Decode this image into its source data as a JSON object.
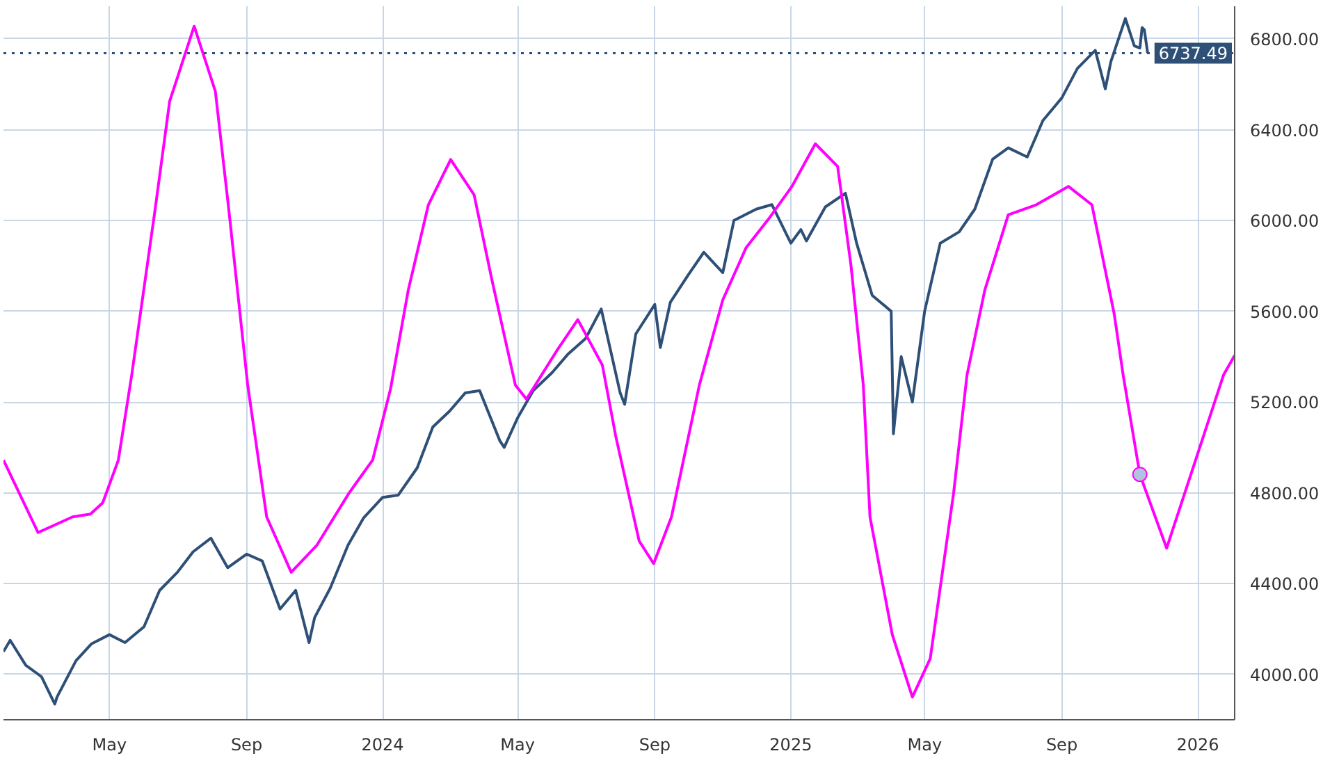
{
  "chart_data": {
    "type": "line",
    "xlim": [
      "2023-01-26",
      "2026-02-03"
    ],
    "ylim": [
      3800,
      6944
    ],
    "xticks": [
      {
        "value": "2023-05-01",
        "label": "May"
      },
      {
        "value": "2023-09-01",
        "label": "Sep"
      },
      {
        "value": "2024-01-01",
        "label": "2024"
      },
      {
        "value": "2024-05-01",
        "label": "May"
      },
      {
        "value": "2024-09-01",
        "label": "Sep"
      },
      {
        "value": "2025-01-01",
        "label": "2025"
      },
      {
        "value": "2025-05-01",
        "label": "May"
      },
      {
        "value": "2025-09-01",
        "label": "Sep"
      },
      {
        "value": "2026-01-01",
        "label": "2026"
      }
    ],
    "yticks": [
      {
        "value": 4000,
        "label": "4000.00"
      },
      {
        "value": 4400,
        "label": "4400.00"
      },
      {
        "value": 4800,
        "label": "4800.00"
      },
      {
        "value": 5200,
        "label": "5200.00"
      },
      {
        "value": 5600,
        "label": "5600.00"
      },
      {
        "value": 6000,
        "label": "6000.00"
      },
      {
        "value": 6400,
        "label": "6400.00"
      },
      {
        "value": 6800,
        "label": "6800.00"
      }
    ],
    "grid": true,
    "line_style": "solid",
    "ref_lines": [
      {
        "axis": "y",
        "value": 6737.49,
        "label": "6737.49",
        "color": "#2e5077",
        "line_style": "dotted"
      }
    ],
    "series": [
      {
        "color": "#2e5077",
        "x": [
          "2023-01-26",
          "2023-02-01",
          "2023-02-15",
          "2023-03-01",
          "2023-03-13",
          "2023-03-15",
          "2023-04-01",
          "2023-04-15",
          "2023-05-01",
          "2023-05-15",
          "2023-06-01",
          "2023-06-15",
          "2023-07-01",
          "2023-07-15",
          "2023-07-31",
          "2023-08-15",
          "2023-09-01",
          "2023-09-15",
          "2023-10-01",
          "2023-10-15",
          "2023-10-27",
          "2023-11-01",
          "2023-11-15",
          "2023-12-01",
          "2023-12-15",
          "2024-01-01",
          "2024-01-15",
          "2024-02-01",
          "2024-02-15",
          "2024-03-01",
          "2024-03-15",
          "2024-03-28",
          "2024-04-15",
          "2024-04-19",
          "2024-05-01",
          "2024-05-15",
          "2024-06-01",
          "2024-06-15",
          "2024-07-01",
          "2024-07-15",
          "2024-08-01",
          "2024-08-05",
          "2024-08-15",
          "2024-09-01",
          "2024-09-06",
          "2024-09-15",
          "2024-10-01",
          "2024-10-15",
          "2024-11-01",
          "2024-11-11",
          "2024-12-01",
          "2024-12-15",
          "2025-01-01",
          "2025-01-10",
          "2025-01-15",
          "2025-02-01",
          "2025-02-19",
          "2025-03-01",
          "2025-03-15",
          "2025-04-01",
          "2025-04-03",
          "2025-04-10",
          "2025-04-20",
          "2025-05-01",
          "2025-05-15",
          "2025-06-01",
          "2025-06-15",
          "2025-07-01",
          "2025-07-15",
          "2025-08-01",
          "2025-08-15",
          "2025-09-01",
          "2025-09-15",
          "2025-10-01",
          "2025-10-10",
          "2025-10-15",
          "2025-10-28",
          "2025-11-05",
          "2025-11-10",
          "2025-11-12",
          "2025-11-14",
          "2025-11-17"
        ],
        "values": [
          4100,
          4150,
          4040,
          3990,
          3869,
          3900,
          4060,
          4135,
          4175,
          4140,
          4210,
          4370,
          4450,
          4540,
          4600,
          4470,
          4530,
          4500,
          4288,
          4370,
          4140,
          4250,
          4380,
          4570,
          4690,
          4780,
          4790,
          4910,
          5090,
          5160,
          5240,
          5250,
          5030,
          5000,
          5130,
          5250,
          5330,
          5410,
          5480,
          5610,
          5240,
          5190,
          5500,
          5630,
          5440,
          5640,
          5760,
          5860,
          5770,
          6000,
          6050,
          6070,
          5900,
          5960,
          5910,
          6060,
          6120,
          5900,
          5670,
          5600,
          5060,
          5400,
          5200,
          5600,
          5900,
          5950,
          6050,
          6270,
          6320,
          6280,
          6440,
          6540,
          6670,
          6750,
          6580,
          6700,
          6890,
          6770,
          6760,
          6850,
          6840,
          6737.49
        ]
      },
      {
        "color": "#ff00ff",
        "x": [
          "2023-01-26",
          "2023-02-26",
          "2023-03-29",
          "2023-04-14",
          "2023-04-25",
          "2023-05-09",
          "2023-05-21",
          "2023-06-11",
          "2023-06-24",
          "2023-07-16",
          "2023-08-04",
          "2023-08-16",
          "2023-09-02",
          "2023-09-19",
          "2023-10-11",
          "2023-11-03",
          "2023-12-02",
          "2023-12-23",
          "2024-01-08",
          "2024-01-24",
          "2024-02-11",
          "2024-03-02",
          "2024-03-23",
          "2024-04-08",
          "2024-04-29",
          "2024-05-09",
          "2024-06-05",
          "2024-06-24",
          "2024-07-16",
          "2024-07-28",
          "2024-08-18",
          "2024-08-31",
          "2024-09-16",
          "2024-10-11",
          "2024-11-01",
          "2024-11-22",
          "2024-12-12",
          "2025-01-02",
          "2025-01-23",
          "2025-02-12",
          "2025-02-24",
          "2025-03-07",
          "2025-03-13",
          "2025-04-02",
          "2025-04-20",
          "2025-05-06",
          "2025-05-27",
          "2025-06-08",
          "2025-06-24",
          "2025-07-15",
          "2025-08-09",
          "2025-09-07",
          "2025-09-28",
          "2025-10-18",
          "2025-10-26",
          "2025-11-10",
          "2025-12-04",
          "2025-12-27",
          "2026-01-24",
          "2026-02-03"
        ],
        "values": [
          4944,
          4625,
          4694,
          4706,
          4756,
          4944,
          5319,
          6050,
          6525,
          6856,
          6569,
          6050,
          5275,
          4694,
          4450,
          4569,
          4800,
          4944,
          5256,
          5694,
          6069,
          6269,
          6113,
          5738,
          5275,
          5213,
          5425,
          5563,
          5363,
          5050,
          4588,
          4488,
          4694,
          5275,
          5650,
          5881,
          6006,
          6150,
          6338,
          6238,
          5800,
          5275,
          4694,
          4175,
          3900,
          4069,
          4800,
          5319,
          5694,
          6025,
          6069,
          6150,
          6069,
          5588,
          5319,
          4881,
          4556,
          4900,
          5319,
          5406
        ]
      },
      {
        "type": "scatter",
        "color": "#b0c4de",
        "marker": "circle",
        "x": [
          "2025-11-10"
        ],
        "values": [
          4881
        ]
      }
    ]
  }
}
